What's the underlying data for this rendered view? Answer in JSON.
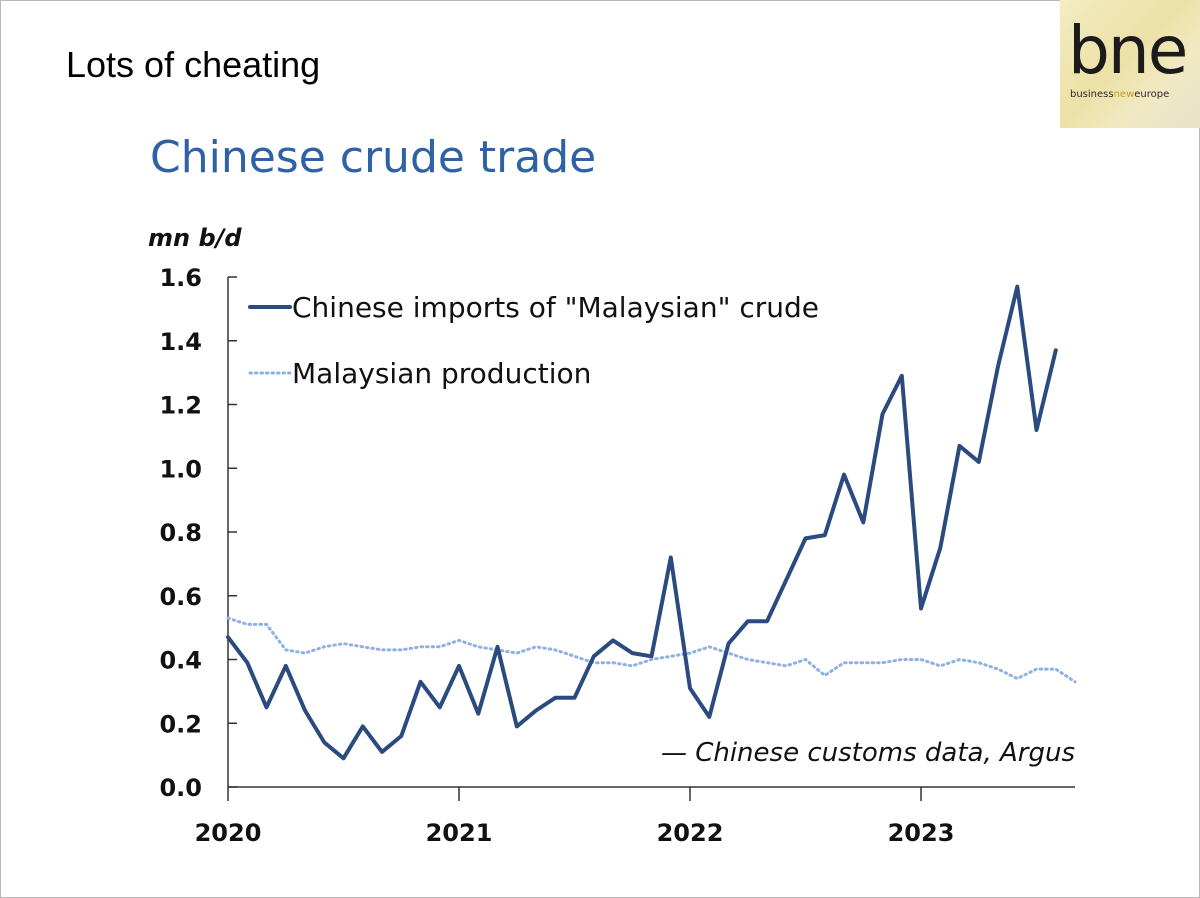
{
  "slide": {
    "title": "Lots of cheating",
    "logo": {
      "word": "bne",
      "tagline_parts": [
        "business",
        "new",
        "europe"
      ]
    }
  },
  "chart_data": {
    "type": "line",
    "title": "Chinese crude trade",
    "ylabel": "mn b/d",
    "xlabel": "",
    "source": "— Chinese customs data, Argus",
    "ylim": [
      0,
      1.6
    ],
    "xlim": [
      "2020-01",
      "2023-09"
    ],
    "y_ticks": [
      "0.0",
      "0.2",
      "0.4",
      "0.6",
      "0.8",
      "1.0",
      "1.2",
      "1.4",
      "1.6"
    ],
    "x_ticks": [
      "2020",
      "2021",
      "2022",
      "2023"
    ],
    "grid": false,
    "legend_position": "top-left",
    "x": [
      "2020-01",
      "2020-02",
      "2020-03",
      "2020-04",
      "2020-05",
      "2020-06",
      "2020-07",
      "2020-08",
      "2020-09",
      "2020-10",
      "2020-11",
      "2020-12",
      "2021-01",
      "2021-02",
      "2021-03",
      "2021-04",
      "2021-05",
      "2021-06",
      "2021-07",
      "2021-08",
      "2021-09",
      "2021-10",
      "2021-11",
      "2021-12",
      "2022-01",
      "2022-02",
      "2022-03",
      "2022-04",
      "2022-05",
      "2022-06",
      "2022-07",
      "2022-08",
      "2022-09",
      "2022-10",
      "2022-11",
      "2022-12",
      "2023-01",
      "2023-02",
      "2023-03",
      "2023-04",
      "2023-05",
      "2023-06",
      "2023-07",
      "2023-08",
      "2023-09"
    ],
    "series": [
      {
        "name": "Chinese imports of \"Malaysian\" crude",
        "style": "solid",
        "color": "#2b4a80",
        "values": [
          0.47,
          0.39,
          0.25,
          0.38,
          0.24,
          0.14,
          0.09,
          0.19,
          0.11,
          0.16,
          0.33,
          0.25,
          0.38,
          0.23,
          0.44,
          0.19,
          0.24,
          0.28,
          0.28,
          0.41,
          0.46,
          0.42,
          0.41,
          0.72,
          0.31,
          0.22,
          0.45,
          0.52,
          0.52,
          0.65,
          0.78,
          0.79,
          0.98,
          0.83,
          1.17,
          1.29,
          0.56,
          0.75,
          1.07,
          1.02,
          1.32,
          1.57,
          1.12,
          1.37,
          null
        ]
      },
      {
        "name": "Malaysian production",
        "style": "dotted",
        "color": "#8fb0e3",
        "values": [
          0.53,
          0.51,
          0.51,
          0.43,
          0.42,
          0.44,
          0.45,
          0.44,
          0.43,
          0.43,
          0.44,
          0.44,
          0.46,
          0.44,
          0.43,
          0.42,
          0.44,
          0.43,
          0.41,
          0.39,
          0.39,
          0.38,
          0.4,
          0.41,
          0.42,
          0.44,
          0.42,
          0.4,
          0.39,
          0.38,
          0.4,
          0.35,
          0.39,
          0.39,
          0.39,
          0.4,
          0.4,
          0.38,
          0.4,
          0.39,
          0.37,
          0.34,
          0.37,
          0.37,
          0.33
        ]
      }
    ]
  }
}
